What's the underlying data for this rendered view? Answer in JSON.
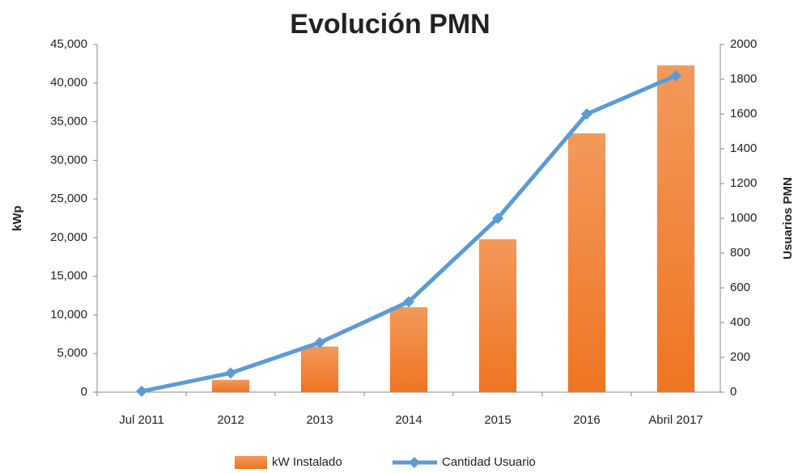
{
  "chart_data": {
    "type": "bar_line",
    "title": "Evolución PMN",
    "ylabel": "kWp",
    "y2label": "Usuarios PMN",
    "categories": [
      "Jul 2011",
      "2012",
      "2013",
      "2014",
      "2015",
      "2016",
      "Abril 2017"
    ],
    "series": [
      {
        "name": "kW Instalado",
        "type": "bar",
        "color": "#f07a25",
        "values": [
          0,
          1600,
          5900,
          11000,
          19800,
          33500,
          42300
        ]
      },
      {
        "name": "Cantidad Usuario",
        "type": "line",
        "axis": "y2",
        "color": "#5b9bd5",
        "values": [
          5,
          110,
          285,
          520,
          1000,
          1600,
          1820
        ]
      }
    ],
    "ylim": [
      0,
      45000
    ],
    "yticks": [
      0,
      {
        "value": 5000,
        "label": "5,000"
      },
      {
        "value": 10000,
        "label": "10,000"
      },
      {
        "value": 15000,
        "label": "15,000"
      },
      {
        "value": 20000,
        "label": "20,000"
      },
      {
        "value": 25000,
        "label": "25,000"
      },
      {
        "value": 30000,
        "label": "30,000"
      },
      {
        "value": 35000,
        "label": "35,000"
      },
      {
        "value": 40000,
        "label": "40,000"
      },
      {
        "value": 45000,
        "label": "45,000"
      }
    ],
    "y2lim": [
      0,
      2000
    ],
    "y2ticks": [
      0,
      200,
      400,
      600,
      800,
      1000,
      1200,
      1400,
      1600,
      1800,
      2000
    ],
    "legend": "bottom"
  }
}
